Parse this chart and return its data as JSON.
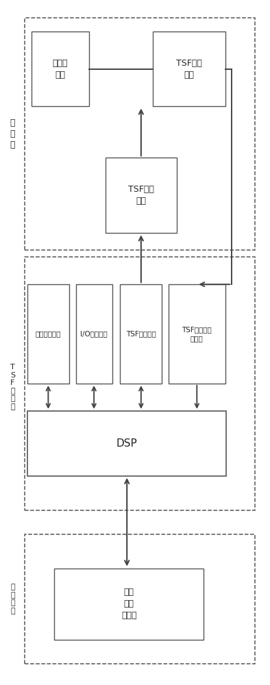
{
  "fig_width": 3.94,
  "fig_height": 10.0,
  "bg_color": "#ffffff",
  "box_edge_color": "#555555",
  "arrow_color": "#444444",
  "text_color": "#222222",
  "label_main": "主电路",
  "label_tsf": "TSF控制器",
  "label_op": "操作界面",
  "box_rongduan": "熔断器\n保护",
  "box_tsf_top": "TSF触发\n系统",
  "box_tsf_mid": "TSF触发\n系统",
  "box_shuju": "数据采集单元",
  "box_io": "I/O信号处理",
  "box_maichong": "TSF触发脉冲",
  "box_jingzhan": "TSF晶闸管状\n态反馈",
  "box_dsp": "DSP",
  "box_display": "显示\n与控\n制界面"
}
